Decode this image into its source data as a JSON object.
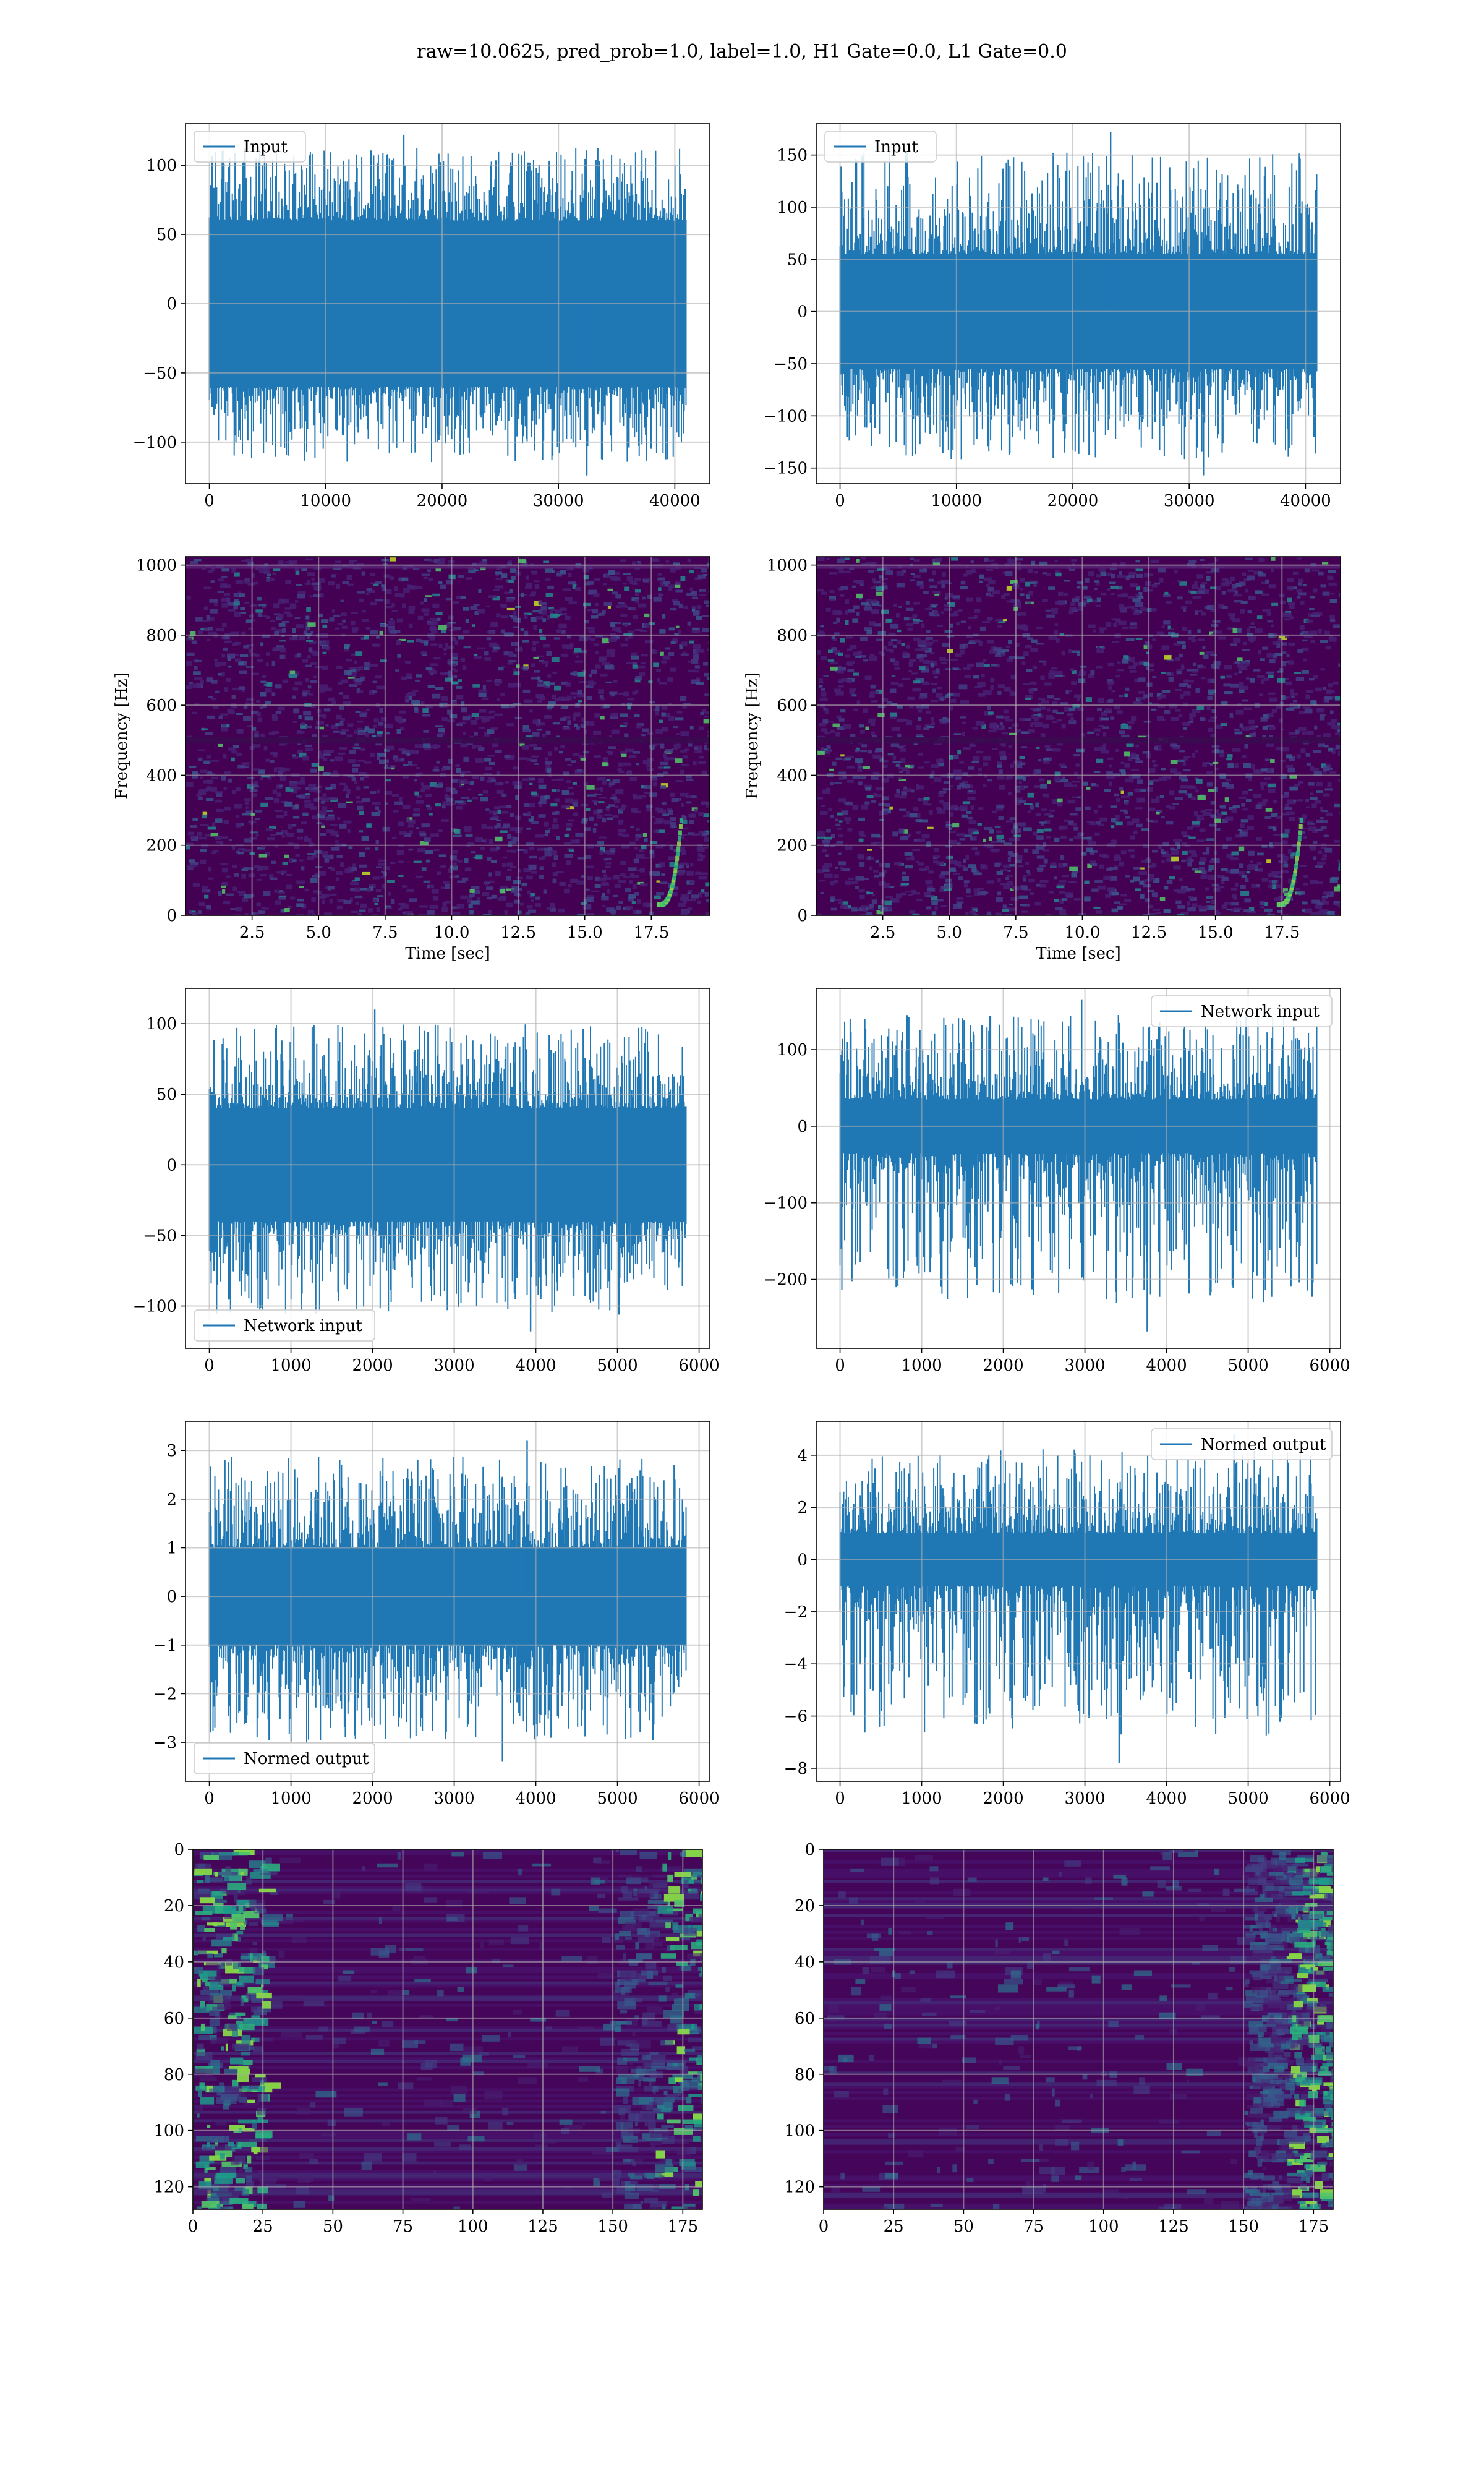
{
  "suptitle": "raw=10.0625, pred_prob=1.0, label=1.0, H1 Gate=0.0, L1 Gate=0.0",
  "colors": {
    "series": "#1f77b4",
    "grid": "#b0b0b0",
    "axes": "#000000",
    "viridis_low": "#440154",
    "viridis_high": "#fde725"
  },
  "chart_data": [
    {
      "id": "h1-input",
      "type": "line",
      "detector": "H1",
      "legend": "Input",
      "legend_loc": "upper left",
      "x_range": [
        0,
        40960
      ],
      "ylim": [
        -130,
        130
      ],
      "xlabel": "",
      "ylabel": "",
      "xticks": [
        0,
        10000,
        20000,
        30000,
        40000
      ],
      "yticks": [
        -100,
        -50,
        0,
        50,
        100
      ],
      "envelope": {
        "core_abs": 60,
        "peak_max": 122,
        "peak_min": -124
      },
      "grid": true
    },
    {
      "id": "l1-input",
      "type": "line",
      "detector": "L1",
      "legend": "Input",
      "legend_loc": "upper left",
      "x_range": [
        0,
        40960
      ],
      "ylim": [
        -165,
        180
      ],
      "xlabel": "",
      "ylabel": "",
      "xticks": [
        0,
        10000,
        20000,
        30000,
        40000
      ],
      "yticks": [
        -150,
        -100,
        -50,
        0,
        50,
        100,
        150
      ],
      "envelope": {
        "core_abs": 55,
        "peak_max": 172,
        "peak_min": -157
      },
      "grid": true
    },
    {
      "id": "h1-spectrogram",
      "type": "heatmap",
      "detector": "H1",
      "colormap": "viridis",
      "xlim": [
        0,
        19.7
      ],
      "ylim": [
        0,
        1024
      ],
      "xlabel": "Time [sec]",
      "ylabel": "Frequency [Hz]",
      "xticks": [
        2.5,
        5.0,
        7.5,
        10.0,
        12.5,
        15.0,
        17.5
      ],
      "yticks": [
        0,
        200,
        400,
        600,
        800,
        1000
      ],
      "grid": true
    },
    {
      "id": "l1-spectrogram",
      "type": "heatmap",
      "detector": "L1",
      "colormap": "viridis",
      "xlim": [
        0,
        19.7
      ],
      "ylim": [
        0,
        1024
      ],
      "xlabel": "Time [sec]",
      "ylabel": "Frequency [Hz]",
      "xticks": [
        2.5,
        5.0,
        7.5,
        10.0,
        12.5,
        15.0,
        17.5
      ],
      "yticks": [
        0,
        200,
        400,
        600,
        800,
        1000
      ],
      "grid": true
    },
    {
      "id": "h1-network-input",
      "type": "line",
      "detector": "H1",
      "legend": "Network input",
      "legend_loc": "lower left",
      "x_range": [
        0,
        5840
      ],
      "ylim": [
        -130,
        125
      ],
      "xlabel": "",
      "ylabel": "",
      "xticks": [
        0,
        1000,
        2000,
        3000,
        4000,
        5000,
        6000
      ],
      "yticks": [
        -100,
        -50,
        0,
        50,
        100
      ],
      "envelope": {
        "core_abs": 40,
        "peak_max": 110,
        "peak_min": -118
      },
      "grid": true
    },
    {
      "id": "l1-network-input",
      "type": "line",
      "detector": "L1",
      "legend": "Network input",
      "legend_loc": "upper right",
      "x_range": [
        0,
        5840
      ],
      "ylim": [
        -290,
        180
      ],
      "xlabel": "",
      "ylabel": "",
      "xticks": [
        0,
        1000,
        2000,
        3000,
        4000,
        5000,
        6000
      ],
      "yticks": [
        -200,
        -100,
        0,
        100
      ],
      "envelope": {
        "core_abs": 35,
        "peak_max": 165,
        "peak_min": -268
      },
      "grid": true
    },
    {
      "id": "h1-normed-output",
      "type": "line",
      "detector": "H1",
      "legend": "Normed output",
      "legend_loc": "lower left",
      "x_range": [
        0,
        5840
      ],
      "ylim": [
        -3.8,
        3.6
      ],
      "xlabel": "",
      "ylabel": "",
      "xticks": [
        0,
        1000,
        2000,
        3000,
        4000,
        5000,
        6000
      ],
      "yticks": [
        -3,
        -2,
        -1,
        0,
        1,
        2,
        3
      ],
      "envelope": {
        "core_abs": 1.0,
        "peak_max": 3.2,
        "peak_min": -3.4
      },
      "grid": true
    },
    {
      "id": "l1-normed-output",
      "type": "line",
      "detector": "L1",
      "legend": "Normed output",
      "legend_loc": "upper right",
      "x_range": [
        0,
        5840
      ],
      "ylim": [
        -8.5,
        5.3
      ],
      "xlabel": "",
      "ylabel": "",
      "xticks": [
        0,
        1000,
        2000,
        3000,
        4000,
        5000,
        6000
      ],
      "yticks": [
        -8,
        -6,
        -4,
        -2,
        0,
        2,
        4
      ],
      "envelope": {
        "core_abs": 1.0,
        "peak_max": 4.8,
        "peak_min": -7.8
      },
      "grid": true
    },
    {
      "id": "h1-feature-map",
      "type": "heatmap",
      "detector": "H1",
      "colormap": "viridis",
      "xlim": [
        0,
        182
      ],
      "ylim": [
        128,
        0
      ],
      "xlabel": "",
      "ylabel": "",
      "xticks": [
        0,
        25,
        50,
        75,
        100,
        125,
        150,
        175
      ],
      "yticks": [
        0,
        20,
        40,
        60,
        80,
        100,
        120
      ],
      "grid": true
    },
    {
      "id": "l1-feature-map",
      "type": "heatmap",
      "detector": "L1",
      "colormap": "viridis",
      "xlim": [
        0,
        182
      ],
      "ylim": [
        128,
        0
      ],
      "xlabel": "",
      "ylabel": "",
      "xticks": [
        0,
        25,
        50,
        75,
        100,
        125,
        150,
        175
      ],
      "yticks": [
        0,
        20,
        40,
        60,
        80,
        100,
        120
      ],
      "grid": true
    }
  ]
}
